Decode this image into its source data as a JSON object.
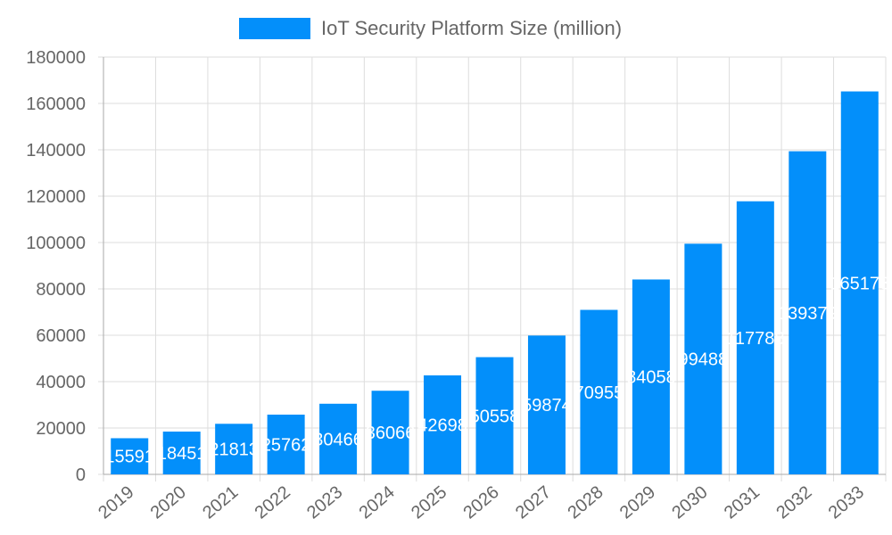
{
  "chart_data": {
    "type": "bar",
    "categories": [
      "2019",
      "2020",
      "2021",
      "2022",
      "2023",
      "2024",
      "2025",
      "2026",
      "2027",
      "2028",
      "2029",
      "2030",
      "2031",
      "2032",
      "2033"
    ],
    "series": [
      {
        "name": "IoT Security Platform Size (million)",
        "values": [
          15591,
          18451,
          21813,
          25762,
          30466,
          36066,
          42698,
          50558,
          59874,
          70955,
          84058,
          99488,
          117788,
          139379,
          165178
        ]
      }
    ],
    "ylim": [
      0,
      180000
    ],
    "yticks": [
      0,
      20000,
      40000,
      60000,
      80000,
      100000,
      120000,
      140000,
      160000,
      180000
    ],
    "grid": true,
    "legend": "top-center",
    "bar_color": "#038ffa",
    "data_labels": true
  }
}
